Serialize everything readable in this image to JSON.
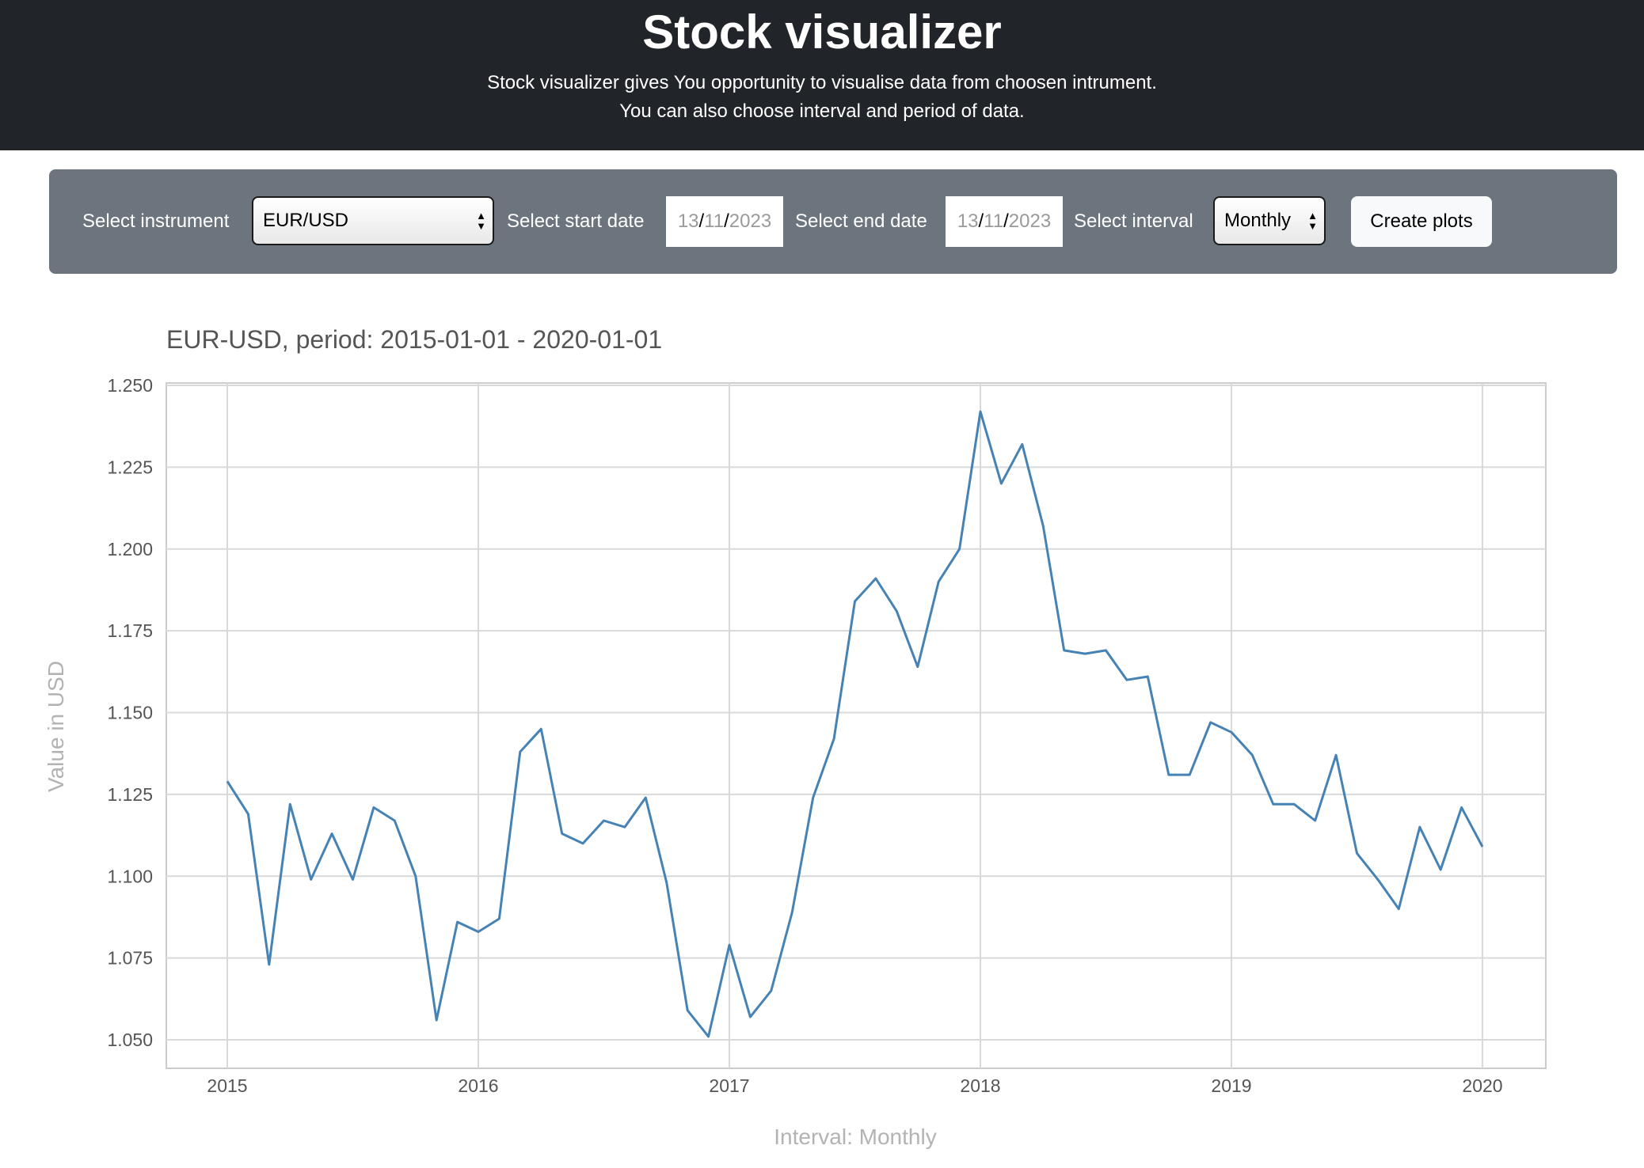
{
  "header": {
    "title": "Stock visualizer",
    "subtitle_line1": "Stock visualizer gives You opportunity to visualise data from choosen intrument.",
    "subtitle_line2": "You can also choose interval and period of data."
  },
  "toolbar": {
    "instrument_label": "Select instrument",
    "instrument_value": "EUR/USD",
    "start_label": "Select start date",
    "start_date": {
      "day": "13",
      "month": "11",
      "year": "2023"
    },
    "end_label": "Select end date",
    "end_date": {
      "day": "13",
      "month": "11",
      "year": "2023"
    },
    "interval_label": "Select interval",
    "interval_value": "Monthly",
    "create_button": "Create plots"
  },
  "colors": {
    "header_bg": "#212529",
    "toolbar_bg": "#6c757d",
    "line": "#4682b4",
    "grid": "#d9d9d9"
  },
  "chart_data": {
    "type": "line",
    "title": "EUR-USD, period: 2015-01-01 - 2020-01-01",
    "xlabel": "Interval: Monthly",
    "ylabel": "Value in USD",
    "ylim": [
      1.05,
      1.25
    ],
    "yticks": [
      "1.050",
      "1.075",
      "1.100",
      "1.125",
      "1.150",
      "1.175",
      "1.200",
      "1.225",
      "1.250"
    ],
    "xticks": [
      "2015",
      "2016",
      "2017",
      "2018",
      "2019",
      "2020"
    ],
    "grid": true,
    "series": [
      {
        "x": [
          "2015-01",
          "2015-02",
          "2015-03",
          "2015-04",
          "2015-05",
          "2015-06",
          "2015-07",
          "2015-08",
          "2015-09",
          "2015-10",
          "2015-11",
          "2015-12",
          "2016-01",
          "2016-02",
          "2016-03",
          "2016-04",
          "2016-05",
          "2016-06",
          "2016-07",
          "2016-08",
          "2016-09",
          "2016-10",
          "2016-11",
          "2016-12",
          "2017-01",
          "2017-02",
          "2017-03",
          "2017-04",
          "2017-05",
          "2017-06",
          "2017-07",
          "2017-08",
          "2017-09",
          "2017-10",
          "2017-11",
          "2017-12",
          "2018-01",
          "2018-02",
          "2018-03",
          "2018-04",
          "2018-05",
          "2018-06",
          "2018-07",
          "2018-08",
          "2018-09",
          "2018-10",
          "2018-11",
          "2018-12",
          "2019-01",
          "2019-02",
          "2019-03",
          "2019-04",
          "2019-05",
          "2019-06",
          "2019-07",
          "2019-08",
          "2019-09",
          "2019-10",
          "2019-11",
          "2019-12",
          "2020-01"
        ],
        "values": [
          1.129,
          1.119,
          1.073,
          1.122,
          1.099,
          1.113,
          1.099,
          1.121,
          1.117,
          1.1,
          1.056,
          1.086,
          1.083,
          1.087,
          1.138,
          1.145,
          1.113,
          1.11,
          1.117,
          1.115,
          1.124,
          1.098,
          1.059,
          1.051,
          1.079,
          1.057,
          1.065,
          1.089,
          1.124,
          1.142,
          1.184,
          1.191,
          1.181,
          1.164,
          1.19,
          1.2,
          1.242,
          1.22,
          1.232,
          1.207,
          1.169,
          1.168,
          1.169,
          1.16,
          1.161,
          1.131,
          1.131,
          1.147,
          1.144,
          1.137,
          1.122,
          1.122,
          1.117,
          1.137,
          1.107,
          1.099,
          1.09,
          1.115,
          1.102,
          1.121,
          1.109
        ]
      }
    ]
  }
}
